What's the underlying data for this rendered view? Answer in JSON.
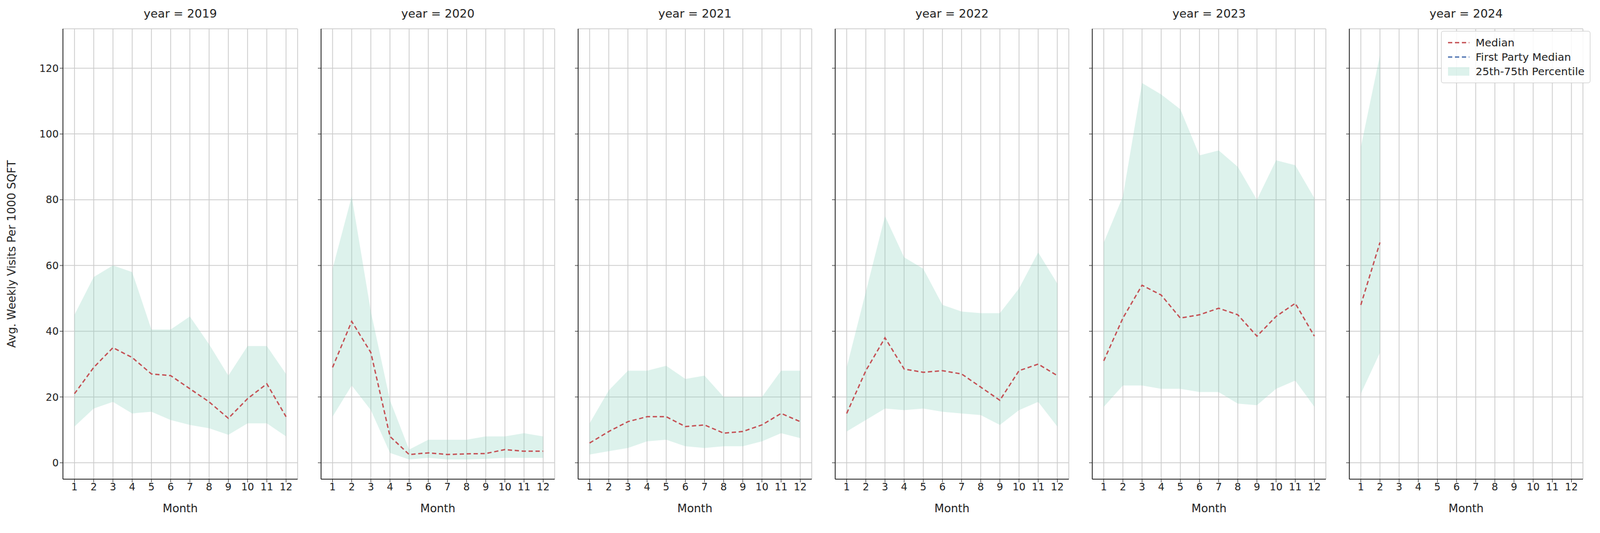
{
  "chart_data": [
    {
      "type": "line",
      "title": "year = 2019",
      "xlabel": "Month",
      "ylabel": "Avg. Weekly Visits Per 1000 SQFT",
      "x": [
        1,
        2,
        3,
        4,
        5,
        6,
        7,
        8,
        9,
        10,
        11,
        12
      ],
      "xlim": [
        0.4,
        12.6
      ],
      "xticks": [
        1,
        2,
        3,
        4,
        5,
        6,
        7,
        8,
        9,
        10,
        11,
        12
      ],
      "ylim": [
        -5,
        132
      ],
      "yticks": [
        0,
        20,
        40,
        60,
        80,
        100,
        120
      ],
      "grid": true,
      "series": [
        {
          "name": "25th-75th Percentile",
          "type": "area",
          "color": "#8fd3bf",
          "values": [
            [
              11,
              45
            ],
            [
              16.5,
              56.5
            ],
            [
              18.5,
              60
            ],
            [
              15,
              58
            ],
            [
              15.5,
              40.5
            ],
            [
              13,
              40.5
            ],
            [
              11.5,
              44.5
            ],
            [
              10.5,
              36
            ],
            [
              8.5,
              26.5
            ],
            [
              12,
              35.5
            ],
            [
              12,
              35.5
            ],
            [
              8,
              27
            ]
          ]
        },
        {
          "name": "Median",
          "type": "line",
          "line_style": "dashed",
          "color": "#c44e52",
          "values": [
            21,
            29,
            35,
            32,
            27,
            26.5,
            22.5,
            18.5,
            13.5,
            19.5,
            24,
            14
          ]
        },
        {
          "name": "First Party Median",
          "type": "line",
          "line_style": "dashed",
          "color": "#4c72b0",
          "values": [
            null,
            null,
            null,
            null,
            null,
            null,
            null,
            null,
            null,
            null,
            null,
            null
          ]
        }
      ]
    },
    {
      "type": "line",
      "title": "year = 2020",
      "xlabel": "Month",
      "tick_labels": "x",
      "x": [
        1,
        2,
        3,
        4,
        5,
        6,
        7,
        8,
        9,
        10,
        11,
        12
      ],
      "xlim": [
        0.4,
        12.6
      ],
      "xticks": [
        1,
        2,
        3,
        4,
        5,
        6,
        7,
        8,
        9,
        10,
        11,
        12
      ],
      "ylim": [
        -5,
        132
      ],
      "yticks": [
        0,
        20,
        40,
        60,
        80,
        100,
        120
      ],
      "grid": true,
      "series": [
        {
          "name": "25th-75th Percentile",
          "type": "area",
          "color": "#8fd3bf",
          "values": [
            [
              14,
              59
            ],
            [
              23.5,
              81
            ],
            [
              16,
              46
            ],
            [
              3,
              19
            ],
            [
              1,
              4
            ],
            [
              1.5,
              7
            ],
            [
              1,
              7
            ],
            [
              1,
              7
            ],
            [
              1.2,
              8
            ],
            [
              1.5,
              8
            ],
            [
              1.5,
              9
            ],
            [
              1.5,
              8
            ]
          ]
        },
        {
          "name": "Median",
          "type": "line",
          "line_style": "dashed",
          "color": "#c44e52",
          "values": [
            29,
            43,
            33.5,
            8,
            2.5,
            3,
            2.5,
            2.7,
            2.8,
            4,
            3.5,
            3.5
          ]
        },
        {
          "name": "First Party Median",
          "type": "line",
          "line_style": "dashed",
          "color": "#4c72b0",
          "values": [
            null,
            null,
            null,
            null,
            null,
            null,
            null,
            null,
            null,
            null,
            null,
            null
          ]
        }
      ]
    },
    {
      "type": "line",
      "title": "year = 2021",
      "xlabel": "Month",
      "tick_labels": "x",
      "x": [
        1,
        2,
        3,
        4,
        5,
        6,
        7,
        8,
        9,
        10,
        11,
        12
      ],
      "xlim": [
        0.4,
        12.6
      ],
      "xticks": [
        1,
        2,
        3,
        4,
        5,
        6,
        7,
        8,
        9,
        10,
        11,
        12
      ],
      "ylim": [
        -5,
        132
      ],
      "yticks": [
        0,
        20,
        40,
        60,
        80,
        100,
        120
      ],
      "grid": true,
      "series": [
        {
          "name": "25th-75th Percentile",
          "type": "area",
          "color": "#8fd3bf",
          "values": [
            [
              2.5,
              12
            ],
            [
              3.5,
              22
            ],
            [
              4.5,
              28
            ],
            [
              6.5,
              28
            ],
            [
              7,
              29.5
            ],
            [
              5,
              25.5
            ],
            [
              4.5,
              26.5
            ],
            [
              5,
              20
            ],
            [
              5,
              20
            ],
            [
              6.5,
              20
            ],
            [
              9,
              28
            ],
            [
              7.5,
              28
            ]
          ]
        },
        {
          "name": "Median",
          "type": "line",
          "line_style": "dashed",
          "color": "#c44e52",
          "values": [
            6,
            9.5,
            12.5,
            14,
            14,
            11,
            11.5,
            9,
            9.5,
            11.5,
            15,
            12.5
          ]
        },
        {
          "name": "First Party Median",
          "type": "line",
          "line_style": "dashed",
          "color": "#4c72b0",
          "values": [
            null,
            null,
            null,
            null,
            null,
            null,
            null,
            null,
            null,
            null,
            null,
            null
          ]
        }
      ]
    },
    {
      "type": "line",
      "title": "year = 2022",
      "xlabel": "Month",
      "tick_labels": "x",
      "x": [
        1,
        2,
        3,
        4,
        5,
        6,
        7,
        8,
        9,
        10,
        11,
        12
      ],
      "xlim": [
        0.4,
        12.6
      ],
      "xticks": [
        1,
        2,
        3,
        4,
        5,
        6,
        7,
        8,
        9,
        10,
        11,
        12
      ],
      "ylim": [
        -5,
        132
      ],
      "yticks": [
        0,
        20,
        40,
        60,
        80,
        100,
        120
      ],
      "grid": true,
      "series": [
        {
          "name": "25th-75th Percentile",
          "type": "area",
          "color": "#8fd3bf",
          "values": [
            [
              9.5,
              29
            ],
            [
              13,
              52
            ],
            [
              16.5,
              75
            ],
            [
              16,
              62.5
            ],
            [
              16.5,
              59
            ],
            [
              15.5,
              48
            ],
            [
              15,
              46
            ],
            [
              14.5,
              45.5
            ],
            [
              11.5,
              45.5
            ],
            [
              16,
              53
            ],
            [
              18.5,
              64
            ],
            [
              11,
              54.5
            ]
          ]
        },
        {
          "name": "Median",
          "type": "line",
          "line_style": "dashed",
          "color": "#c44e52",
          "values": [
            15,
            28,
            38,
            28.5,
            27.5,
            28,
            27,
            23,
            19,
            28,
            30,
            26.5
          ]
        },
        {
          "name": "First Party Median",
          "type": "line",
          "line_style": "dashed",
          "color": "#4c72b0",
          "values": [
            null,
            null,
            null,
            null,
            null,
            null,
            null,
            null,
            null,
            null,
            null,
            null
          ]
        }
      ]
    },
    {
      "type": "line",
      "title": "year = 2023",
      "xlabel": "Month",
      "tick_labels": "x",
      "x": [
        1,
        2,
        3,
        4,
        5,
        6,
        7,
        8,
        9,
        10,
        11,
        12
      ],
      "xlim": [
        0.4,
        12.6
      ],
      "xticks": [
        1,
        2,
        3,
        4,
        5,
        6,
        7,
        8,
        9,
        10,
        11,
        12
      ],
      "ylim": [
        -5,
        132
      ],
      "yticks": [
        0,
        20,
        40,
        60,
        80,
        100,
        120
      ],
      "grid": true,
      "series": [
        {
          "name": "25th-75th Percentile",
          "type": "area",
          "color": "#8fd3bf",
          "values": [
            [
              17,
              67
            ],
            [
              23.5,
              81
            ],
            [
              23.5,
              115.5
            ],
            [
              22.5,
              112
            ],
            [
              22.5,
              107.5
            ],
            [
              21.5,
              93.5
            ],
            [
              21.5,
              95
            ],
            [
              18,
              90
            ],
            [
              17.5,
              80
            ],
            [
              22.5,
              92
            ],
            [
              25,
              90.5
            ],
            [
              17,
              80.5
            ]
          ]
        },
        {
          "name": "Median",
          "type": "line",
          "line_style": "dashed",
          "color": "#c44e52",
          "values": [
            31,
            44,
            54,
            51,
            44,
            45,
            47,
            45,
            38.5,
            44.5,
            48.5,
            38.5
          ]
        },
        {
          "name": "First Party Median",
          "type": "line",
          "line_style": "dashed",
          "color": "#4c72b0",
          "values": [
            null,
            null,
            null,
            null,
            null,
            null,
            null,
            null,
            null,
            null,
            null,
            null
          ]
        }
      ]
    },
    {
      "type": "line",
      "title": "year = 2024",
      "xlabel": "Month",
      "tick_labels": "x",
      "legend": "upper right",
      "x": [
        1,
        2,
        3,
        4,
        5,
        6,
        7,
        8,
        9,
        10,
        11,
        12
      ],
      "xlim": [
        0.4,
        12.6
      ],
      "xticks": [
        1,
        2,
        3,
        4,
        5,
        6,
        7,
        8,
        9,
        10,
        11,
        12
      ],
      "ylim": [
        -5,
        132
      ],
      "yticks": [
        0,
        20,
        40,
        60,
        80,
        100,
        120
      ],
      "grid": true,
      "series": [
        {
          "name": "25th-75th Percentile",
          "type": "area",
          "color": "#8fd3bf",
          "values": [
            [
              21,
              96
            ],
            [
              33.5,
              124
            ],
            null,
            null,
            null,
            null,
            null,
            null,
            null,
            null,
            null,
            null
          ]
        },
        {
          "name": "Median",
          "type": "line",
          "line_style": "dashed",
          "color": "#c44e52",
          "values": [
            48,
            67,
            null,
            null,
            null,
            null,
            null,
            null,
            null,
            null,
            null,
            null
          ]
        },
        {
          "name": "First Party Median",
          "type": "line",
          "line_style": "dashed",
          "color": "#4c72b0",
          "values": [
            null,
            null,
            null,
            null,
            null,
            null,
            null,
            null,
            null,
            null,
            null,
            null
          ]
        }
      ]
    }
  ]
}
